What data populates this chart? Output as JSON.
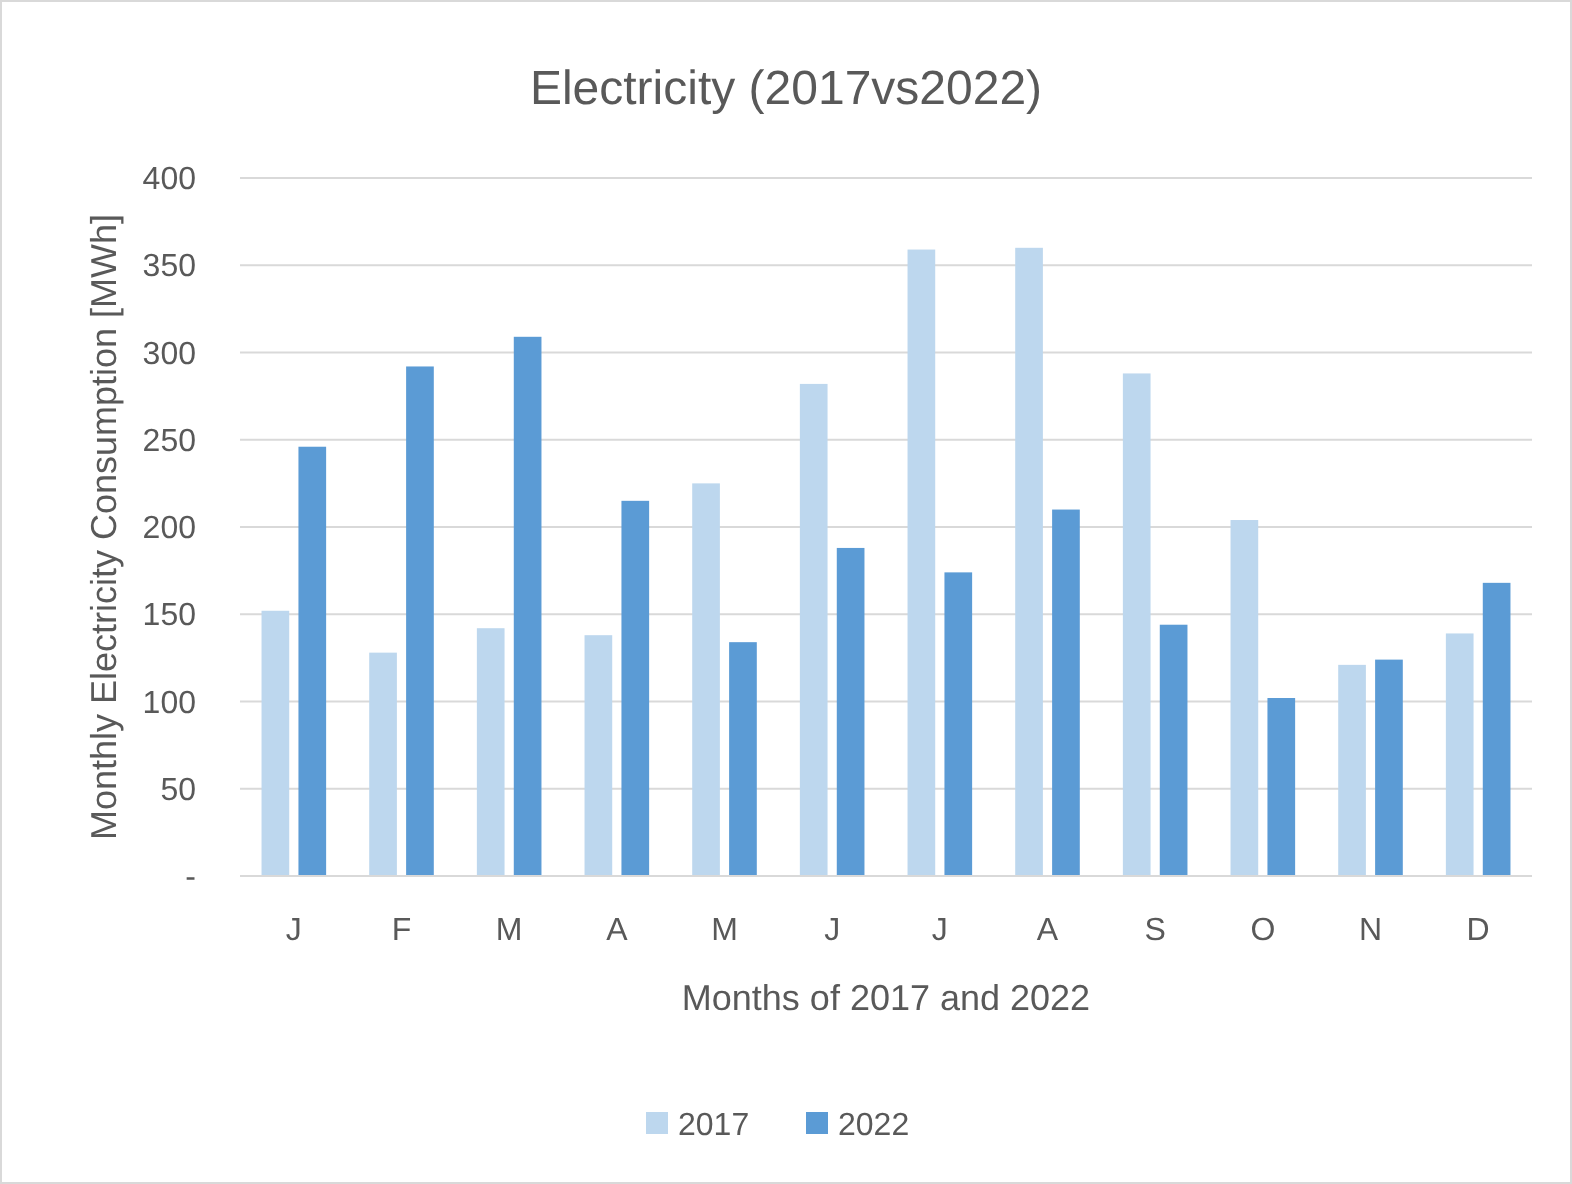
{
  "chart_data": {
    "type": "bar",
    "title": "Electricity (2017vs2022)",
    "xlabel": "Months of 2017 and 2022",
    "ylabel": "Monthly Electricity Consumption [MWh]",
    "categories": [
      "J",
      "F",
      "M",
      "A",
      "M",
      "J",
      "J",
      "A",
      "S",
      "O",
      "N",
      "D"
    ],
    "series": [
      {
        "name": "2017",
        "color": "#bdd7ee",
        "values": [
          152,
          128,
          142,
          138,
          225,
          282,
          359,
          360,
          288,
          204,
          121,
          139
        ]
      },
      {
        "name": "2022",
        "color": "#5b9bd5",
        "values": [
          246,
          292,
          309,
          215,
          134,
          188,
          174,
          210,
          144,
          102,
          124,
          168
        ]
      }
    ],
    "ylim": [
      0,
      400
    ],
    "yticks": [
      {
        "value": 0,
        "label": "-"
      },
      50,
      100,
      150,
      200,
      250,
      300,
      350,
      400
    ],
    "grid": "y",
    "legend": "bottom"
  }
}
